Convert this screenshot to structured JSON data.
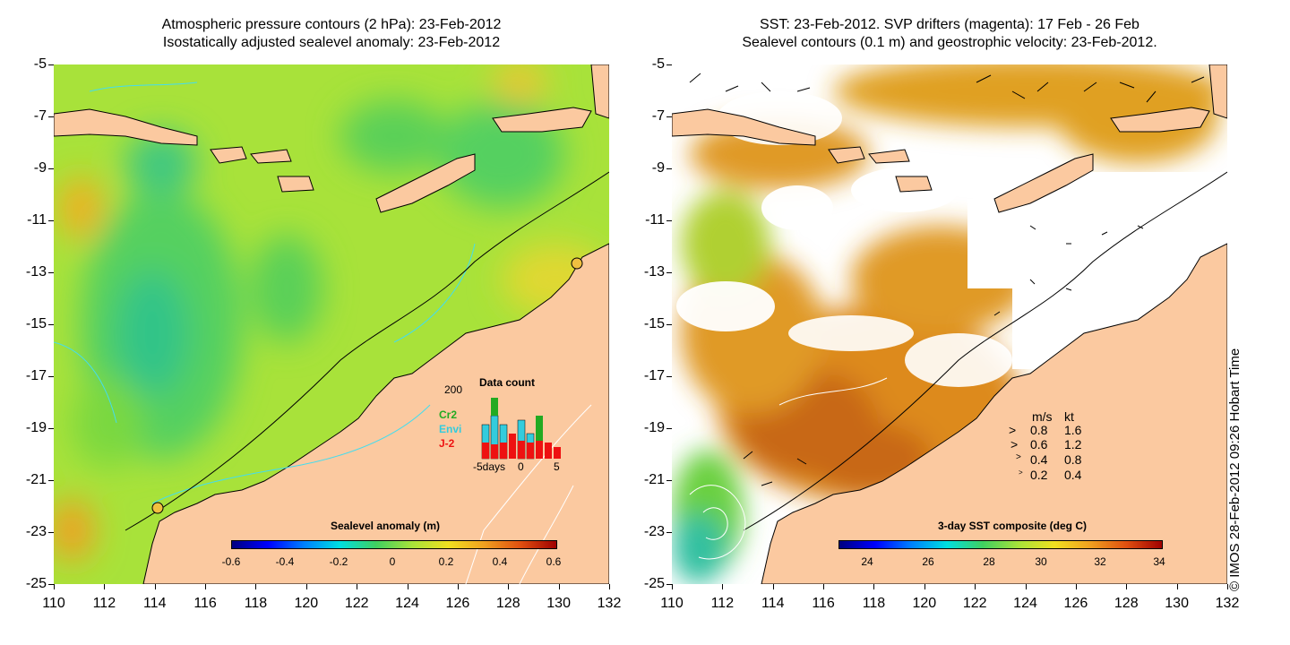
{
  "left_panel": {
    "title_line1": "Atmospheric pressure contours (2 hPa): 23-Feb-2012",
    "title_line2": "Isostatically adjusted sealevel anomaly: 23-Feb-2012",
    "colorbar_title": "Sealevel anomaly (m)",
    "colorbar_ticks": [
      "-0.6",
      "-0.4",
      "-0.2",
      "0",
      "0.2",
      "0.4",
      "0.6"
    ],
    "inset": {
      "title": "Data count",
      "ymax": "200",
      "series": [
        {
          "name": "Cr2",
          "color": "#22aa22"
        },
        {
          "name": "Envi",
          "color": "#33ccdd"
        },
        {
          "name": "J-2",
          "color": "#ee1111"
        }
      ],
      "x_left": "-5days",
      "x_mid": "0",
      "x_right": "5"
    }
  },
  "right_panel": {
    "title_line1": "SST: 23-Feb-2012. SVP drifters (magenta): 17 Feb - 26 Feb",
    "title_line2": "Sealevel contours (0.1 m) and geostrophic velocity: 23-Feb-2012.",
    "colorbar_title": "3-day SST composite (deg C)",
    "colorbar_ticks": [
      "24",
      "26",
      "28",
      "30",
      "32",
      "34"
    ],
    "velocity_legend": {
      "header_ms": "m/s",
      "header_kt": "kt",
      "rows": [
        {
          "ms": "0.8",
          "kt": "1.6"
        },
        {
          "ms": "0.6",
          "kt": "1.2"
        },
        {
          "ms": "0.4",
          "kt": "0.8"
        },
        {
          "ms": "0.2",
          "kt": "0.4"
        }
      ]
    }
  },
  "axes": {
    "y_labels": [
      "-5",
      "-7",
      "-9",
      "-11",
      "-13",
      "-15",
      "-17",
      "-19",
      "-21",
      "-23",
      "-25"
    ],
    "x_labels": [
      "110",
      "112",
      "114",
      "116",
      "118",
      "120",
      "122",
      "124",
      "126",
      "128",
      "130",
      "132"
    ]
  },
  "copyright": "© IMOS 28-Feb-2012 09:26 Hobart Time",
  "colors": {
    "land": "#fbc9a0",
    "ocean_green": "#9ae02a",
    "sla_cyan": "#35d4a8",
    "sst_orange": "#dd8a1e",
    "contour_cyan": "#44ddee"
  }
}
